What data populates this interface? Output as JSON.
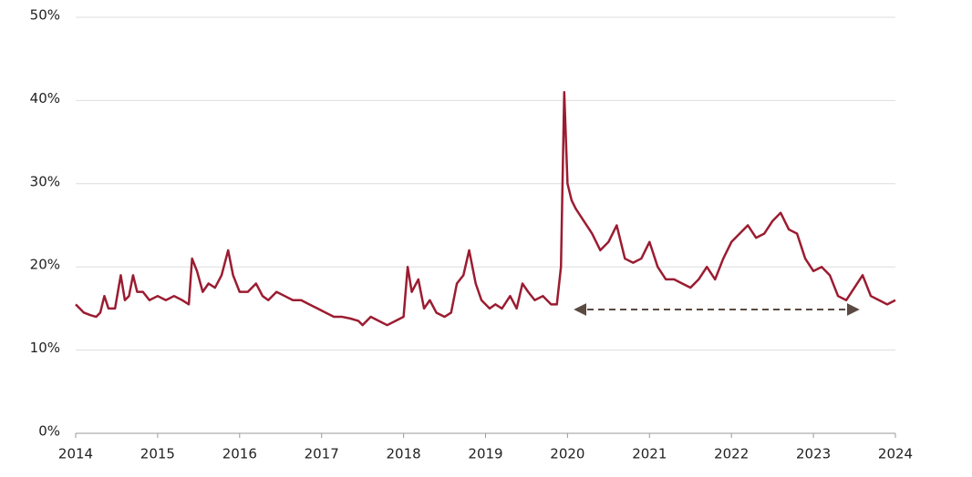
{
  "chart_data": {
    "type": "line",
    "x": [
      2014,
      2014.05,
      2014.1,
      2014.18,
      2014.25,
      2014.3,
      2014.35,
      2014.4,
      2014.48,
      2014.55,
      2014.6,
      2014.65,
      2014.7,
      2014.75,
      2014.82,
      2014.9,
      2015,
      2015.1,
      2015.2,
      2015.3,
      2015.38,
      2015.42,
      2015.48,
      2015.55,
      2015.62,
      2015.7,
      2015.78,
      2015.86,
      2015.92,
      2016,
      2016.1,
      2016.2,
      2016.28,
      2016.35,
      2016.45,
      2016.55,
      2016.65,
      2016.75,
      2016.85,
      2016.95,
      2017.05,
      2017.15,
      2017.25,
      2017.35,
      2017.45,
      2017.5,
      2017.6,
      2017.7,
      2017.8,
      2017.9,
      2018,
      2018.05,
      2018.1,
      2018.18,
      2018.25,
      2018.32,
      2018.4,
      2018.5,
      2018.58,
      2018.65,
      2018.73,
      2018.8,
      2018.88,
      2018.95,
      2019.05,
      2019.12,
      2019.2,
      2019.3,
      2019.38,
      2019.45,
      2019.52,
      2019.6,
      2019.7,
      2019.8,
      2019.87,
      2019.92,
      2019.96,
      2020,
      2020.05,
      2020.1,
      2020.2,
      2020.3,
      2020.4,
      2020.5,
      2020.6,
      2020.7,
      2020.8,
      2020.9,
      2021,
      2021.1,
      2021.2,
      2021.3,
      2021.4,
      2021.5,
      2021.6,
      2021.7,
      2021.8,
      2021.9,
      2022,
      2022.1,
      2022.2,
      2022.3,
      2022.4,
      2022.5,
      2022.6,
      2022.7,
      2022.8,
      2022.9,
      2023,
      2023.1,
      2023.2,
      2023.3,
      2023.4,
      2023.5,
      2023.6,
      2023.7,
      2023.8,
      2023.9,
      2024
    ],
    "series": [
      {
        "color": "#9b1c31",
        "values": [
          15.5,
          15,
          14.5,
          14.2,
          14,
          14.5,
          16.5,
          15,
          15,
          19,
          16,
          16.5,
          19,
          17,
          17,
          16,
          16.5,
          16,
          16.5,
          16,
          15.5,
          21,
          19.5,
          17,
          18,
          17.5,
          19,
          22,
          19,
          17,
          17,
          18,
          16.5,
          16,
          17,
          16.5,
          16,
          16,
          15.5,
          15,
          14.5,
          14,
          14,
          13.8,
          13.5,
          13,
          14,
          13.5,
          13,
          13.5,
          14,
          20,
          17,
          18.5,
          15,
          16,
          14.5,
          14,
          14.5,
          18,
          19,
          22,
          18,
          16,
          15,
          15.5,
          15,
          16.5,
          15,
          18,
          17,
          16,
          16.5,
          15.5,
          15.5,
          20,
          41,
          30,
          28,
          27,
          25.5,
          24,
          22,
          23,
          25,
          21,
          20.5,
          21,
          23,
          20,
          18.5,
          18.5,
          18,
          17.5,
          18.5,
          20,
          18.5,
          21,
          23,
          24,
          25,
          23.5,
          24,
          25.5,
          26.5,
          24.5,
          24,
          21,
          19.5,
          20,
          19,
          16.5,
          16,
          17.5,
          19,
          16.5,
          16,
          15.5,
          16
        ]
      }
    ],
    "xlim": [
      2014,
      2024
    ],
    "xticks": [
      2014,
      2015,
      2016,
      2017,
      2018,
      2019,
      2020,
      2021,
      2022,
      2023,
      2024
    ],
    "ylim": [
      0,
      50
    ],
    "yticks": [
      {
        "value": 0,
        "label": "0%"
      },
      {
        "value": 10,
        "label": "10%"
      },
      {
        "value": 20,
        "label": "20%"
      },
      {
        "value": 30,
        "label": "30%"
      },
      {
        "value": 40,
        "label": "40%"
      },
      {
        "value": 50,
        "label": "50%"
      }
    ],
    "grid": true
  }
}
